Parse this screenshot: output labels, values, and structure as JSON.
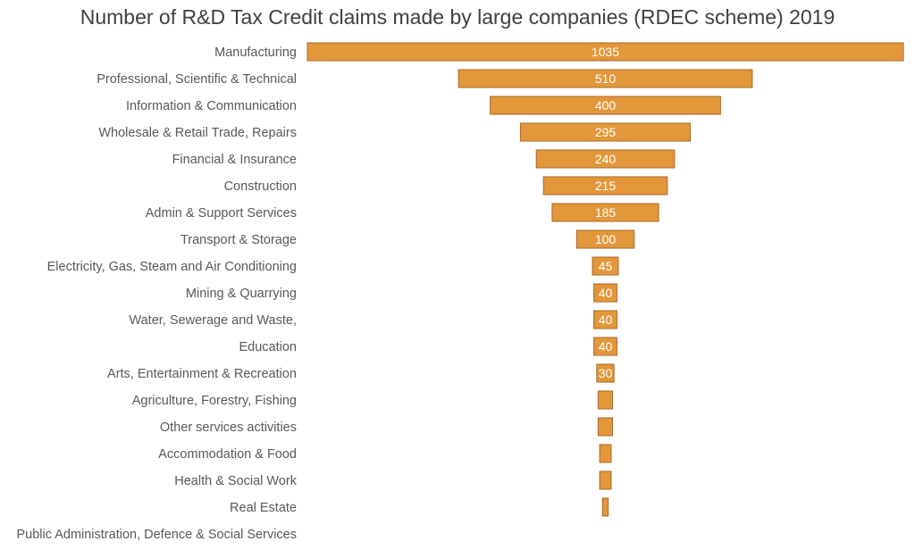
{
  "chart_data": {
    "type": "bar",
    "orientation": "horizontal",
    "layout": "funnel",
    "title": "Number of R&D Tax Credit claims made by large companies (RDEC scheme) 2019",
    "xlabel": "",
    "ylabel": "",
    "grid": false,
    "legend": "none",
    "bar_color": "#E2973A",
    "bar_border_color": "#A8692A",
    "categories": [
      "Manufacturing",
      "Professional, Scientific & Technical",
      "Information & Communication",
      "Wholesale & Retail Trade, Repairs",
      "Financial & Insurance",
      "Construction",
      "Admin & Support Services",
      "Transport & Storage",
      "Electricity, Gas, Steam and Air Conditioning",
      "Mining & Quarrying",
      "Water, Sewerage and Waste,",
      "Education",
      "Arts, Entertainment & Recreation",
      "Agriculture, Forestry, Fishing",
      "Other services activities",
      "Accommodation & Food",
      "Health & Social Work",
      "Real Estate",
      "Public Administration, Defence & Social Services"
    ],
    "values": [
      1035,
      510,
      400,
      295,
      240,
      215,
      185,
      100,
      45,
      40,
      40,
      40,
      30,
      25,
      25,
      20,
      20,
      10,
      0
    ],
    "data_labels": [
      "1035",
      "510",
      "400",
      "295",
      "240",
      "215",
      "185",
      "100",
      "45",
      "40",
      "40",
      "40",
      "30",
      "",
      "",
      "",
      "",
      "",
      ""
    ]
  }
}
